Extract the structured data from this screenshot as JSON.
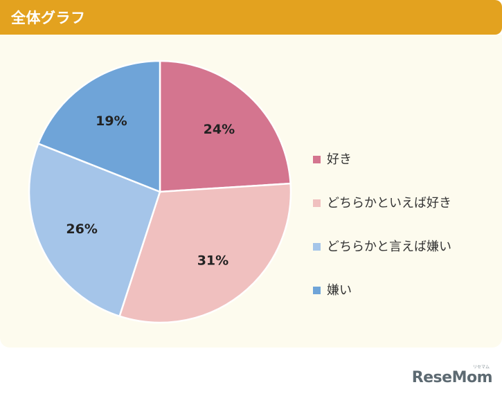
{
  "header": {
    "title": "全体グラフ"
  },
  "chart_data": {
    "type": "pie",
    "categories": [
      "好き",
      "どちらかといえば好き",
      "どちらかと言えば嫌い",
      "嫌い"
    ],
    "values": [
      24,
      31,
      26,
      19
    ],
    "labels": [
      "24%",
      "31%",
      "26%",
      "19%"
    ],
    "colors": [
      "#d4758f",
      "#f0c0bf",
      "#a5c5e9",
      "#6fa4d8"
    ],
    "legend_placement": "right"
  },
  "brand": {
    "name": "ReseMom",
    "sub": "リセマム"
  }
}
